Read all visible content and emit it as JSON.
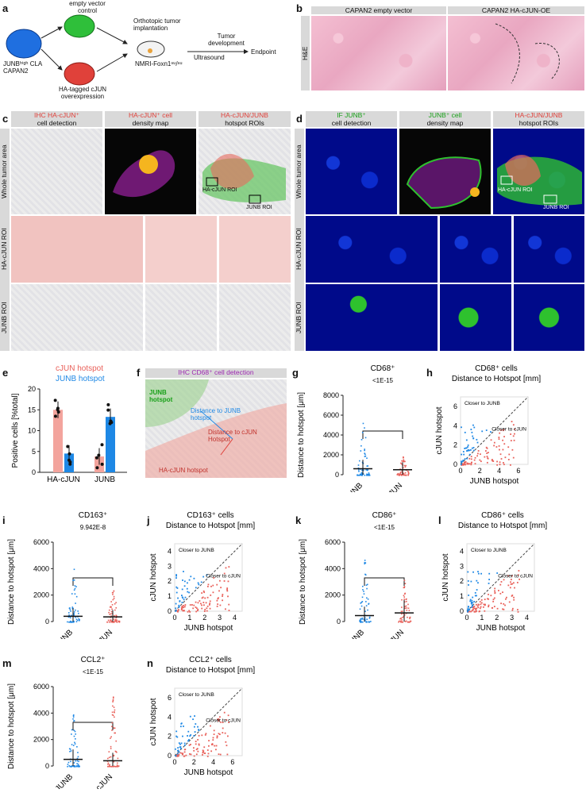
{
  "panel_labels": {
    "a": "a",
    "b": "b",
    "c": "c",
    "d": "d",
    "e": "e",
    "f": "f",
    "g": "g",
    "h": "h",
    "i": "i",
    "j": "j",
    "k": "k",
    "l": "l",
    "m": "m",
    "n": "n"
  },
  "a": {
    "cell_line": "JUNBʰⁱᵍʰ CLA CAPAN2",
    "control": "empty vector control",
    "overexpression": "HA-tagged cJUN overexpression",
    "implant": "Orthotopic tumor implantation",
    "mouse": "NMRI-Foxn1ⁿᵘ/ⁿᵘ",
    "development": "Tumor development",
    "ultrasound": "Ultrasound",
    "endpoint": "Endpoint"
  },
  "b": {
    "col1": "CAPAN2 empty vector",
    "col2": "CAPAN2 HA-cJUN-OE",
    "row": "H&E"
  },
  "c": {
    "h1a": "IHC HA-cJUN⁺",
    "h1b": "cell detection",
    "h2a": "HA-cJUN⁺ cell",
    "h2b": "density map",
    "h3a": "HA-cJUN/JUNB",
    "h3b": "hotspot ROIs",
    "rows": [
      "Whole tumor area",
      "HA-cJUN ROI",
      "JUNB ROI"
    ],
    "roi1": "HA-cJUN ROI",
    "roi2": "JUNB ROI"
  },
  "d": {
    "h1a": "IF JUNB⁺",
    "h1b": "cell detection",
    "h2a": "JUNB⁺ cell",
    "h2b": "density map",
    "h3a": "HA-cJUN/JUNB",
    "h3b": "hotspot ROIs",
    "rows": [
      "Whole tumor area",
      "HA-cJUN ROI",
      "JUNB ROI"
    ],
    "roi1": "HA-cJUN ROI",
    "roi2": "JUNB ROI"
  },
  "f": {
    "header": "IHC CD68⁺ cell detection",
    "junb": "JUNB hotspot",
    "dist_junb": "Distance to JUNB hotspot",
    "dist_cjun": "Distance to cJUN Hotspot",
    "hacjun": "HA-cJUN hotspot"
  },
  "colors": {
    "cjun": "#e9615a",
    "junb": "#1e88e5",
    "cjun_fill": "#f3a49d"
  },
  "chart_data": [
    {
      "panel": "e",
      "type": "bar",
      "legend": [
        "cJUN hotspot",
        "JUNB hotspot"
      ],
      "categories": [
        "HA-cJUN",
        "JUNB"
      ],
      "ylabel": "Positive cells [%total]",
      "ylim": [
        0,
        20
      ],
      "yticks": [
        0,
        5,
        10,
        15,
        20
      ],
      "series": [
        {
          "name": "cJUN hotspot",
          "values": [
            15,
            3.8
          ]
        },
        {
          "name": "JUNB hotspot",
          "values": [
            4.5,
            13.3
          ]
        }
      ]
    },
    {
      "panel": "g",
      "type": "scatter",
      "title": "CD68⁺",
      "pvalue": "<1E-15",
      "categories": [
        "JUNB",
        "cJUN"
      ],
      "ylabel": "Distance to hotspot [μm]",
      "ylim": [
        0,
        8000
      ],
      "yticks": [
        0,
        2000,
        4000,
        6000,
        8000
      ],
      "max": [
        6000,
        2000
      ],
      "median": [
        600,
        500
      ]
    },
    {
      "panel": "h",
      "type": "scatter",
      "title": "CD68⁺ cells",
      "subtitle": "Distance to Hotspot [mm]",
      "xlabel": "JUNB hotspot",
      "ylabel": "cJUN hotspot",
      "xlim": [
        0,
        7
      ],
      "ylim": [
        0,
        7
      ],
      "ticks": [
        0,
        2,
        4,
        6
      ],
      "notes": [
        "Closer to JUNB",
        "Closer to cJUN"
      ]
    },
    {
      "panel": "i",
      "type": "scatter",
      "title": "CD163⁺",
      "pvalue": "9.942E-8",
      "categories": [
        "JUNB",
        "cJUN"
      ],
      "ylabel": "Distance to hotspot [μm]",
      "ylim": [
        0,
        6000
      ],
      "yticks": [
        0,
        2000,
        4000,
        6000
      ],
      "max": [
        4500,
        2600
      ],
      "median": [
        400,
        350
      ]
    },
    {
      "panel": "j",
      "type": "scatter",
      "title": "CD163⁺ cells",
      "subtitle": "Distance to Hotspot [mm]",
      "xlabel": "JUNB hotspot",
      "ylabel": "cJUN hotspot",
      "xlim": [
        0,
        4.5
      ],
      "ylim": [
        0,
        4.5
      ],
      "ticks": [
        0,
        1,
        2,
        3,
        4
      ],
      "notes": [
        "Closer to JUNB",
        "Closer to cJUN"
      ]
    },
    {
      "panel": "k",
      "type": "scatter",
      "title": "CD86⁺",
      "pvalue": "<1E-15",
      "categories": [
        "JUNB",
        "cJUN"
      ],
      "ylabel": "Distance to hotspot [μm]",
      "ylim": [
        0,
        6000
      ],
      "yticks": [
        0,
        2000,
        4000,
        6000
      ],
      "max": [
        4800,
        3400
      ],
      "median": [
        450,
        650
      ]
    },
    {
      "panel": "l",
      "type": "scatter",
      "title": "CD86⁺ cells",
      "subtitle": "Distance to Hotspot [mm]",
      "xlabel": "JUNB hotspot",
      "ylabel": "cJUN hotspot",
      "xlim": [
        0,
        4.5
      ],
      "ylim": [
        0,
        4.5
      ],
      "ticks": [
        0,
        1,
        2,
        3,
        4
      ],
      "notes": [
        "Closer to JUNB",
        "Closer to cJUN"
      ]
    },
    {
      "panel": "m",
      "type": "scatter",
      "title": "CCL2⁺",
      "pvalue": "<1E-15",
      "categories": [
        "JUNB",
        "cJUN"
      ],
      "ylabel": "Distance to hotspot [μm]",
      "ylim": [
        0,
        6000
      ],
      "yticks": [
        0,
        2000,
        4000,
        6000
      ],
      "max": [
        4000,
        5500
      ],
      "median": [
        500,
        400
      ]
    },
    {
      "panel": "n",
      "type": "scatter",
      "title": "CCL2⁺ cells",
      "subtitle": "Distance to Hotspot [mm]",
      "xlabel": "JUNB hotspot",
      "ylabel": "cJUN hotspot",
      "xlim": [
        0,
        7
      ],
      "ylim": [
        0,
        7
      ],
      "ticks": [
        0,
        2,
        4,
        6
      ],
      "notes": [
        "Closer to JUNB",
        "Closer to cJUN"
      ]
    }
  ]
}
